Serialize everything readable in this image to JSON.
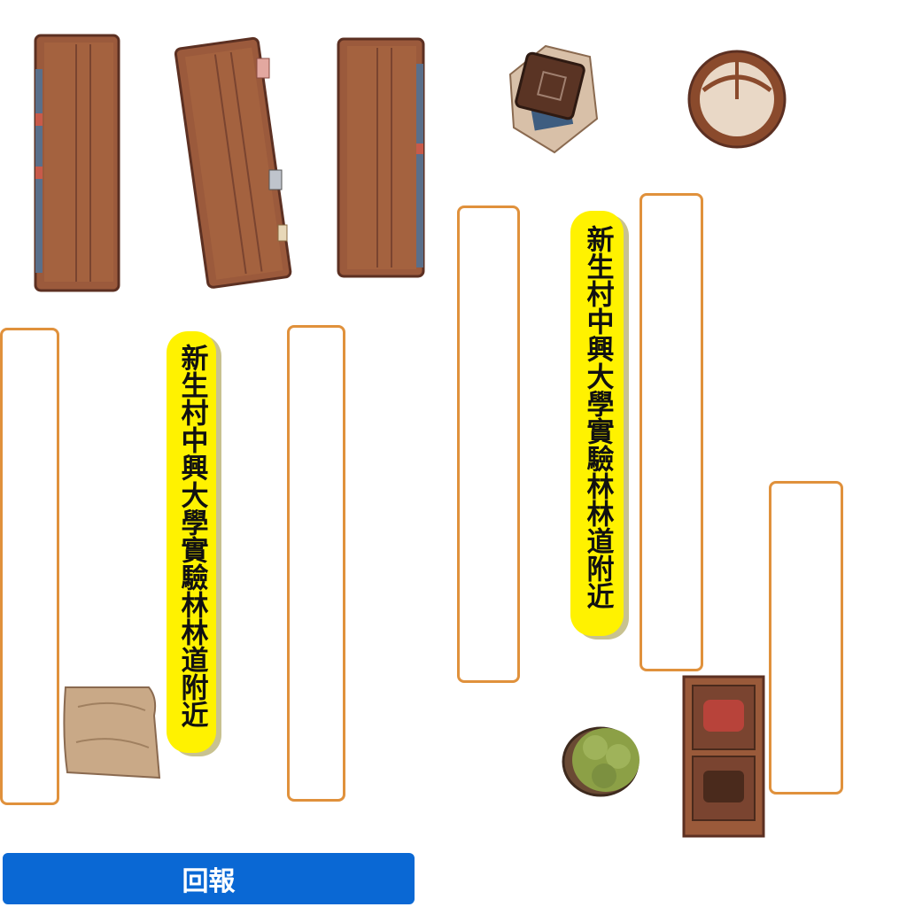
{
  "labels": {
    "label1": "新生村中興大學實驗林林道附近",
    "label2": "新生村中興大學實驗林林道附近"
  },
  "report_button": "回報",
  "items": [
    {
      "name": "bookshelf-1"
    },
    {
      "name": "bookshelf-2"
    },
    {
      "name": "bookshelf-3"
    },
    {
      "name": "books-on-paper"
    },
    {
      "name": "round-basket"
    },
    {
      "name": "paper-scroll"
    },
    {
      "name": "plant-pot"
    },
    {
      "name": "cabinet"
    }
  ],
  "colors": {
    "slot_border": "#e0913c",
    "label_bg": "#fff200",
    "button_bg": "#0a68d4",
    "wood": "#9a5a3a"
  }
}
